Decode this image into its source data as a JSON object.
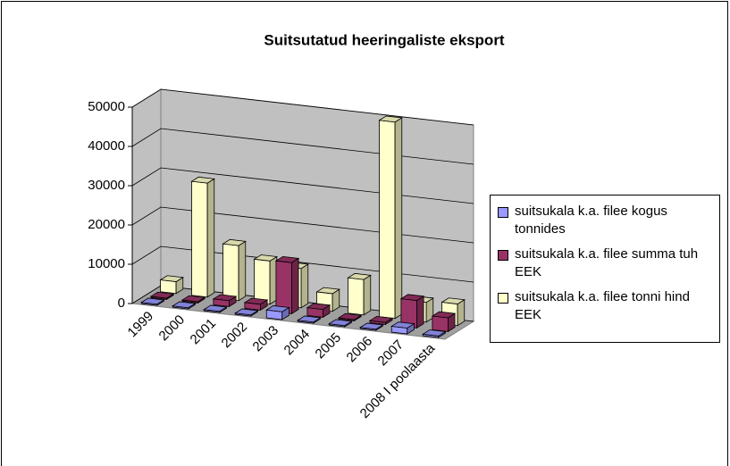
{
  "chart_data": {
    "type": "bar3d",
    "title": "Suitsutatud heeringaliste eksport",
    "categories": [
      "1999",
      "2000",
      "2001",
      "2002",
      "2003",
      "2004",
      "2005",
      "2006",
      "2007",
      "2008 I poolaasta"
    ],
    "series": [
      {
        "name": "suitsukala k.a. filee kogus tonnides",
        "color": "#9999ff",
        "values": [
          300,
          300,
          300,
          300,
          2000,
          300,
          300,
          300,
          1500,
          400
        ]
      },
      {
        "name": "suitsukala k.a. filee summa tuh EEK",
        "color": "#993366",
        "values": [
          300,
          300,
          1500,
          1500,
          13000,
          2000,
          300,
          500,
          7000,
          3500
        ]
      },
      {
        "name": "suitsukala k.a. filee tonni hind  EEK",
        "color": "#ffffcc",
        "values": [
          3000,
          29000,
          14000,
          11000,
          10000,
          4500,
          9000,
          50000,
          5000,
          5500
        ]
      }
    ],
    "ylim": [
      0,
      50000
    ],
    "yticks": [
      0,
      10000,
      20000,
      30000,
      40000,
      50000
    ],
    "grid": true,
    "legend": "right"
  }
}
